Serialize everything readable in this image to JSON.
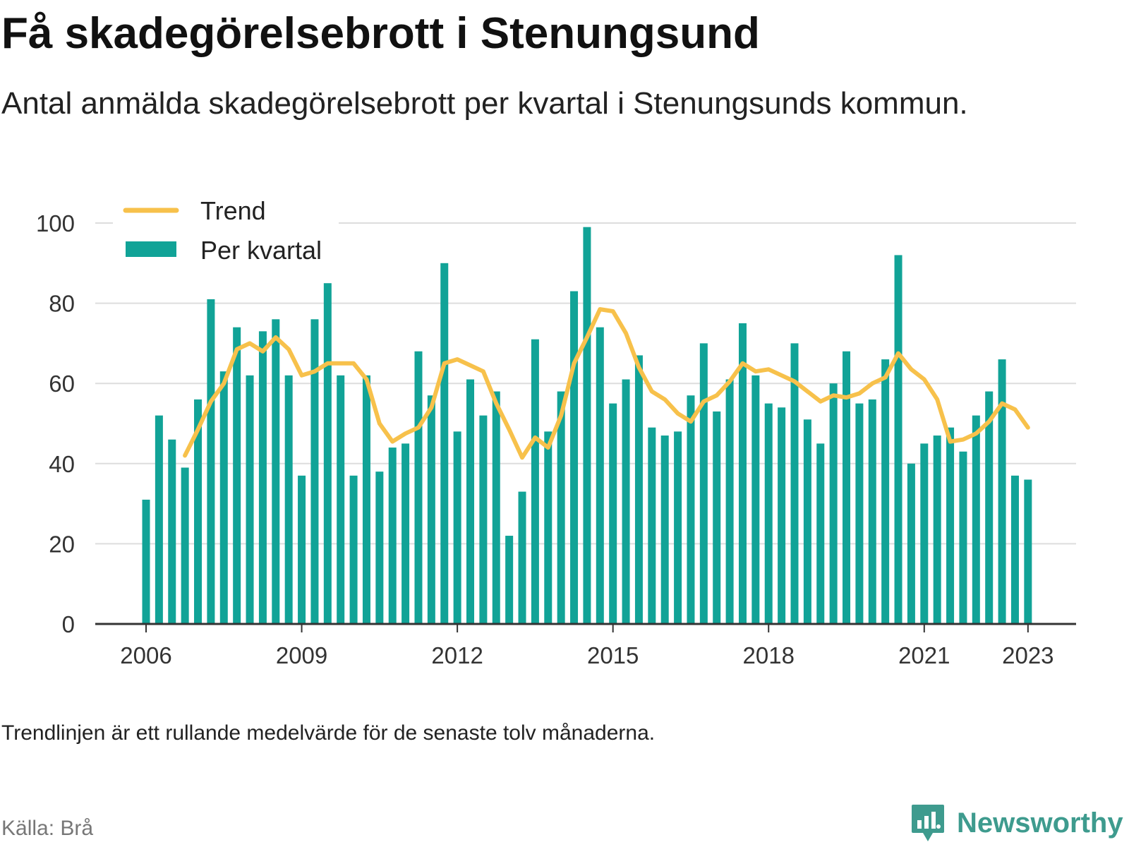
{
  "title": "Få skadegörelsebrott i Stenungsund",
  "subtitle": "Antal anmälda skadegörelsebrott per kvartal i Stenungsunds kommun.",
  "footnote": "Trendlinjen är ett rullande medelvärde för de senaste tolv månaderna.",
  "source": "Källa: Brå",
  "brand": {
    "name": "Newsworthy",
    "icon": "newsworthy-logo-icon",
    "color": "#3e9b8e"
  },
  "colors": {
    "bars": "#11a397",
    "trend": "#f7c14b",
    "grid": "#dddddd",
    "axis": "#333333"
  },
  "chart_data": {
    "type": "bar",
    "x_start": "2006 Q1",
    "x_tick_labels": [
      "2006",
      "2009",
      "2012",
      "2015",
      "2018",
      "2021",
      "2023"
    ],
    "y_ticks": [
      0,
      20,
      40,
      60,
      80,
      100
    ],
    "ylim": [
      0,
      100
    ],
    "legend": {
      "placement": "top-left",
      "items": [
        "Trend",
        "Per kvartal"
      ]
    },
    "grid": true,
    "series": [
      {
        "name": "Per kvartal",
        "kind": "bar",
        "values": [
          31,
          52,
          46,
          39,
          56,
          81,
          63,
          74,
          62,
          73,
          76,
          62,
          37,
          76,
          85,
          62,
          37,
          62,
          38,
          44,
          45,
          68,
          57,
          90,
          48,
          61,
          52,
          58,
          22,
          33,
          71,
          48,
          58,
          83,
          99,
          74,
          55,
          61,
          67,
          49,
          47,
          48,
          57,
          70,
          53,
          61,
          75,
          62,
          55,
          54,
          70,
          51,
          45,
          60,
          68,
          55,
          56,
          66,
          92,
          40,
          45,
          47,
          49,
          43,
          52,
          58,
          66,
          37,
          36
        ]
      },
      {
        "name": "Trend",
        "kind": "line",
        "values": [
          null,
          null,
          null,
          42,
          48.5,
          55.5,
          60,
          68.5,
          70,
          68,
          71.5,
          68.5,
          62,
          63,
          65,
          65,
          65,
          61,
          50,
          45.5,
          47.5,
          49,
          54,
          65,
          66,
          64.5,
          63,
          55,
          48.5,
          41.5,
          46.5,
          44,
          52,
          65,
          71.5,
          78.5,
          78,
          72.5,
          64,
          58,
          56,
          52.5,
          50.5,
          55.5,
          57,
          60.5,
          65,
          63,
          63.5,
          62,
          60.5,
          58,
          55.5,
          57,
          56.5,
          57.5,
          60,
          61.5,
          67.5,
          63.5,
          61,
          56,
          45.5,
          46,
          47.5,
          50.5,
          55,
          53.5,
          49
        ]
      }
    ]
  }
}
